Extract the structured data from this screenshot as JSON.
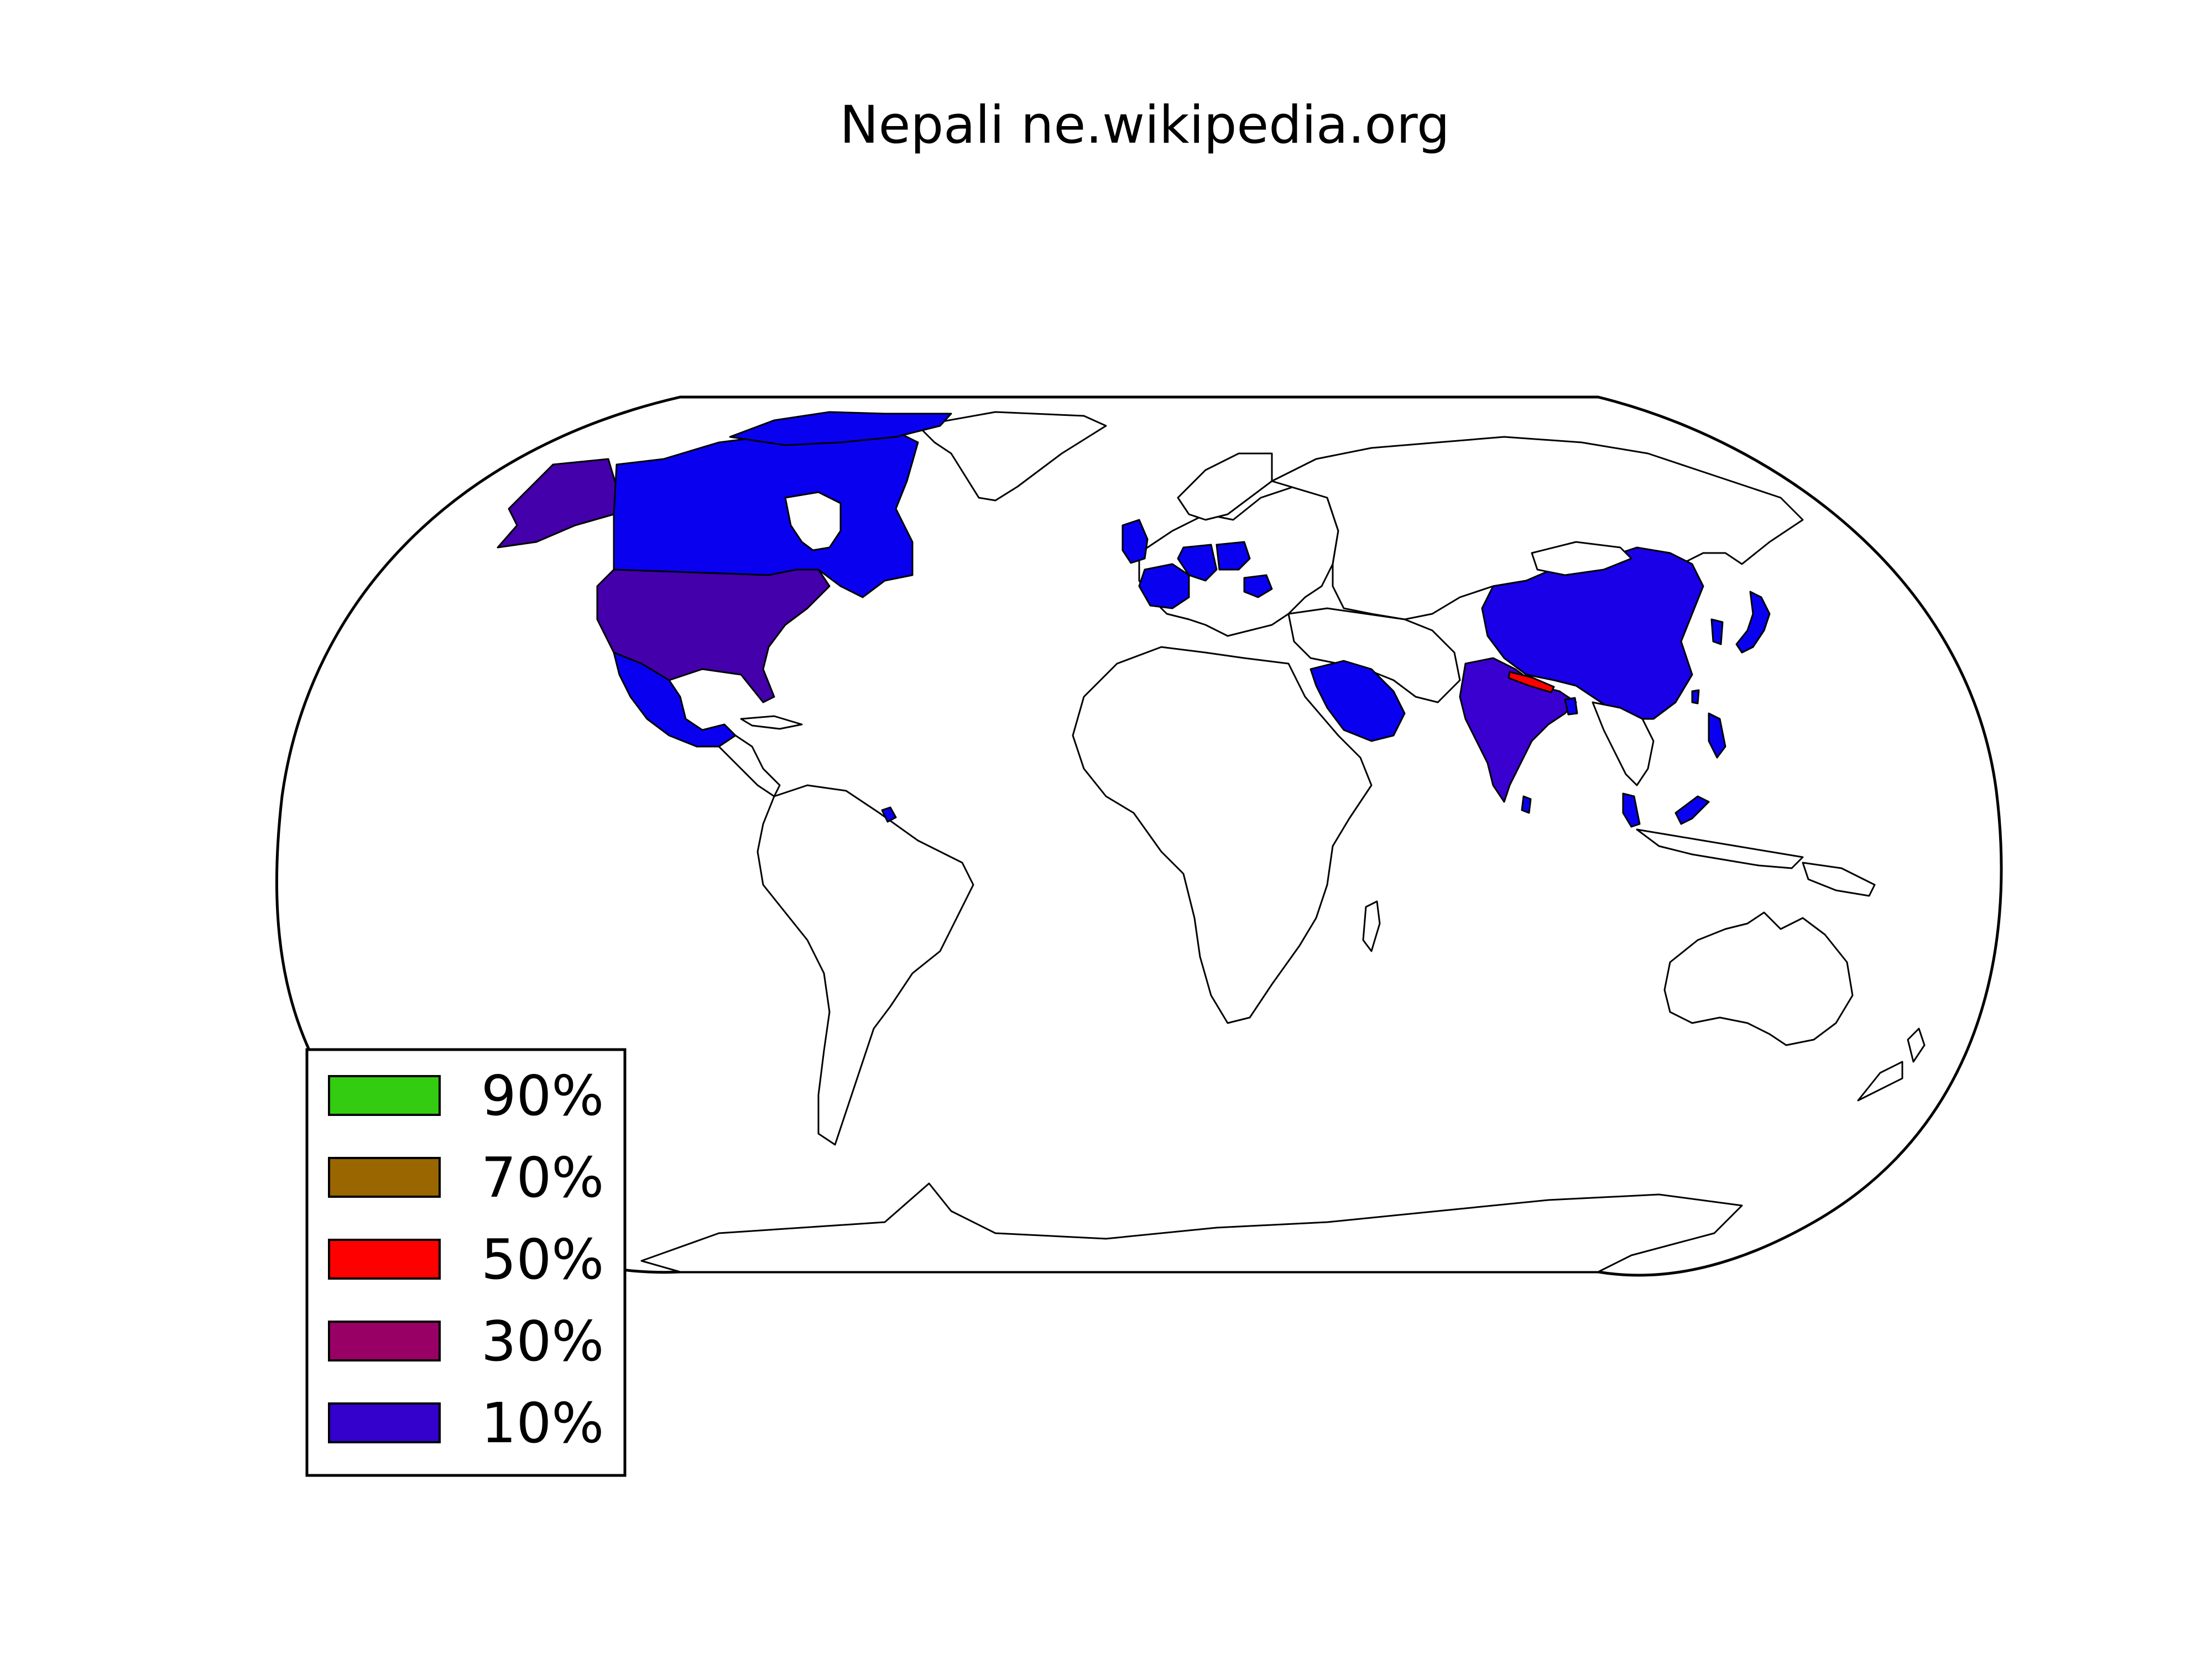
{
  "map": {
    "title": "Nepali ne.wikipedia.org",
    "colors": {
      "ocean": "#ffffff",
      "land_default": "#ffffff",
      "outline": "#000000"
    }
  },
  "legend": {
    "items": [
      {
        "label": "90%",
        "color": "#33cc11"
      },
      {
        "label": "70%",
        "color": "#996600"
      },
      {
        "label": "50%",
        "color": "#ff0000"
      },
      {
        "label": "30%",
        "color": "#990066"
      },
      {
        "label": "10%",
        "color": "#3300cc"
      }
    ]
  },
  "regions": [
    {
      "name": "Nepal",
      "category": "50%",
      "color": "#ff0000"
    },
    {
      "name": "India",
      "color": "#3a00d0"
    },
    {
      "name": "United States",
      "color": "#4400aa"
    },
    {
      "name": "Alaska",
      "color": "#4400aa"
    },
    {
      "name": "Canada",
      "color": "#0a00f0"
    },
    {
      "name": "Mexico",
      "color": "#0a00f0"
    },
    {
      "name": "China",
      "color": "#1a00e6"
    },
    {
      "name": "Japan",
      "color": "#0a00f0"
    },
    {
      "name": "South Korea",
      "color": "#0a00f0"
    },
    {
      "name": "Saudi Arabia",
      "color": "#0a00f0"
    },
    {
      "name": "United Kingdom",
      "color": "#0a00f0"
    },
    {
      "name": "France",
      "color": "#0a00f0"
    },
    {
      "name": "Germany",
      "color": "#0a00f0"
    },
    {
      "name": "Belgium",
      "color": "#0a00f0"
    },
    {
      "name": "Poland",
      "color": "#0a00f0"
    },
    {
      "name": "Romania",
      "color": "#0a00f0"
    },
    {
      "name": "Malaysia",
      "color": "#0a00f0"
    },
    {
      "name": "Bangladesh",
      "color": "#0a00f0"
    },
    {
      "name": "Sri Lanka",
      "color": "#0a00f0"
    },
    {
      "name": "Taiwan",
      "color": "#0a00f0"
    },
    {
      "name": "Philippines",
      "color": "#0a00f0"
    },
    {
      "name": "Suriname",
      "color": "#0a00f0"
    }
  ]
}
